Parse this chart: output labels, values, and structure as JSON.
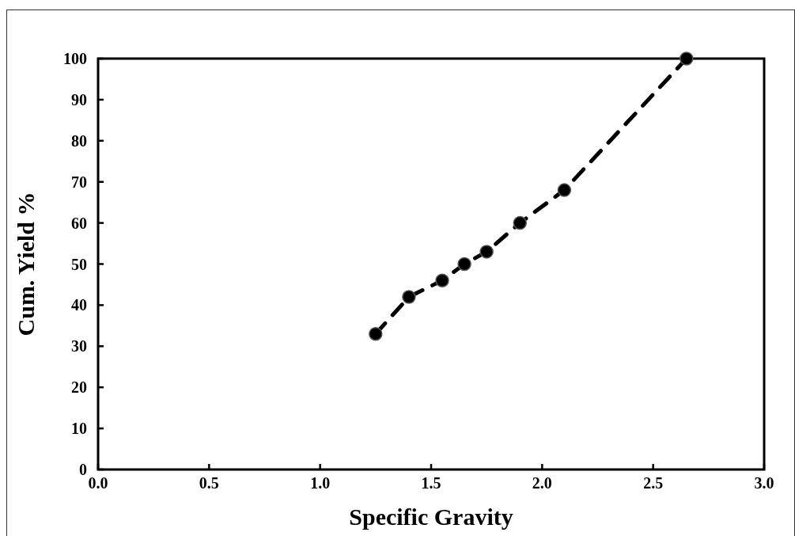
{
  "chart_data": {
    "type": "line",
    "xlabel": "Specific Gravity",
    "ylabel": "Cum. Yield %",
    "x": [
      1.25,
      1.4,
      1.55,
      1.65,
      1.75,
      1.9,
      2.1,
      2.65
    ],
    "series": [
      {
        "color": "#000000",
        "values": [
          33,
          42,
          46,
          50,
          53,
          60,
          68,
          100
        ]
      }
    ],
    "xlim": [
      0,
      3
    ],
    "xticks": [
      {
        "value": 0,
        "label": "0.0"
      },
      0.5,
      {
        "value": 1,
        "label": "1.0"
      },
      1.5,
      {
        "value": 2,
        "label": "2.0"
      },
      2.5,
      {
        "value": 3,
        "label": "3.0"
      }
    ],
    "ylim": [
      0,
      100
    ],
    "yticks": [
      0,
      10,
      20,
      30,
      40,
      50,
      60,
      70,
      80,
      90,
      100
    ],
    "grid": false,
    "marker": "circle",
    "line_style": "dashed"
  }
}
